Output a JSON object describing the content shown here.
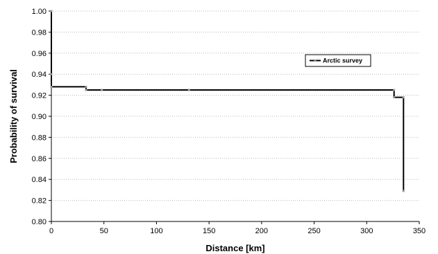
{
  "chart_data": {
    "type": "line",
    "title": "",
    "xlabel": "Distance [km]",
    "ylabel": "Probability of survival",
    "xlim": [
      0,
      350
    ],
    "ylim": [
      0.8,
      1.0
    ],
    "x_ticks": [
      0,
      50,
      100,
      150,
      200,
      250,
      300,
      350
    ],
    "y_ticks": [
      0.8,
      0.82,
      0.84,
      0.86,
      0.88,
      0.9,
      0.92,
      0.94,
      0.96,
      0.98,
      1.0
    ],
    "x_tick_labels": [
      "0",
      "50",
      "100",
      "150",
      "200",
      "250",
      "300",
      "350"
    ],
    "y_tick_labels": [
      "0.80",
      "0.82",
      "0.84",
      "0.86",
      "0.88",
      "0.90",
      "0.92",
      "0.94",
      "0.96",
      "0.98",
      "1.00"
    ],
    "grid": "horizontal dotted",
    "legend_position": "top-right",
    "series": [
      {
        "name": "Arctic survey",
        "color": "#000000",
        "marker_color": "#9a9a9a",
        "step": true,
        "points": [
          {
            "x": 0,
            "y": 1.0
          },
          {
            "x": 0,
            "y": 0.928
          },
          {
            "x": 33,
            "y": 0.928
          },
          {
            "x": 33,
            "y": 0.925
          },
          {
            "x": 48,
            "y": 0.925
          },
          {
            "x": 131,
            "y": 0.925
          },
          {
            "x": 326,
            "y": 0.925
          },
          {
            "x": 326,
            "y": 0.918
          },
          {
            "x": 335,
            "y": 0.918
          },
          {
            "x": 335,
            "y": 0.829
          }
        ],
        "markers": [
          {
            "x": 0,
            "y": 1.0
          },
          {
            "x": 0,
            "y": 0.94
          },
          {
            "x": 0,
            "y": 0.928
          },
          {
            "x": 33,
            "y": 0.928
          },
          {
            "x": 33,
            "y": 0.925
          },
          {
            "x": 48,
            "y": 0.925
          },
          {
            "x": 131,
            "y": 0.925
          },
          {
            "x": 326,
            "y": 0.925
          },
          {
            "x": 326,
            "y": 0.918
          },
          {
            "x": 335,
            "y": 0.918
          },
          {
            "x": 335,
            "y": 0.829
          }
        ]
      }
    ]
  }
}
